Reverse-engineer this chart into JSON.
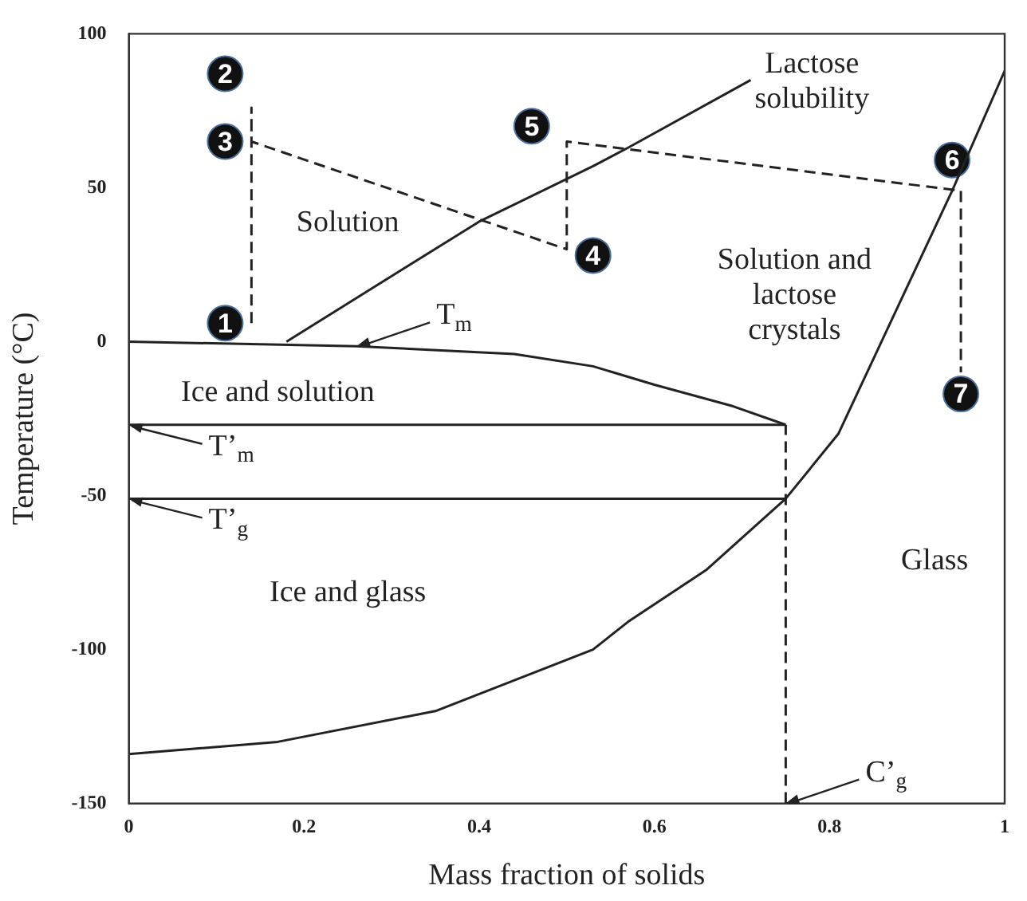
{
  "chart_data": {
    "type": "line",
    "xlabel": "Mass fraction of solids",
    "ylabel": "Temperature (°C)",
    "xlim": [
      0,
      1
    ],
    "xticks": [
      0,
      0.2,
      0.4,
      0.6,
      0.8,
      1
    ],
    "ylim": [
      -150,
      100
    ],
    "yticks": [
      -150,
      -100,
      -50,
      0,
      50,
      100
    ],
    "grid": false,
    "series": [
      {
        "color": "#222222",
        "line_style": "solid",
        "marker": "none",
        "x": [
          0,
          0.26,
          0.44,
          0.53,
          0.6,
          0.69,
          0.75
        ],
        "values": [
          0,
          -1.5,
          -4,
          -8,
          -14,
          -21,
          -27
        ]
      },
      {
        "color": "#222222",
        "line_style": "solid",
        "marker": "none",
        "x": [
          0.18,
          0.4,
          0.53,
          0.57,
          0.71
        ],
        "values": [
          0,
          39,
          57,
          63,
          85
        ]
      },
      {
        "color": "#222222",
        "line_style": "solid",
        "marker": "none",
        "x": [
          0,
          0.17,
          0.35,
          0.53,
          0.57,
          0.66,
          0.75,
          0.81,
          0.94,
          1
        ],
        "values": [
          -134,
          -130,
          -120,
          -100,
          -91,
          -74,
          -51,
          -30,
          49,
          88
        ]
      },
      {
        "color": "#222222",
        "line_style": "solid",
        "marker": "none",
        "x": [
          0,
          0.75
        ],
        "values": [
          -27,
          -27
        ]
      },
      {
        "color": "#222222",
        "line_style": "solid",
        "marker": "none",
        "x": [
          0,
          0.75
        ],
        "values": [
          -51,
          -51
        ]
      },
      {
        "color": "#222222",
        "line_style": "dashed",
        "marker": "none",
        "x": [
          0.75,
          0.75
        ],
        "values": [
          -150,
          -27
        ]
      },
      {
        "color": "#222222",
        "line_style": "dashed",
        "marker": "none",
        "x": [
          0.14,
          0.14,
          0.14,
          0.5,
          0.5,
          0.95,
          0.95
        ],
        "values": [
          6,
          76,
          65,
          30,
          65,
          49,
          -10
        ]
      },
      {
        "type": "scatter",
        "color": "#111111",
        "marker": "circle",
        "x": [
          0.11,
          0.11,
          0.11,
          0.53,
          0.46,
          0.94,
          0.95
        ],
        "values": [
          6,
          87,
          65,
          28,
          70,
          59,
          -17
        ]
      }
    ],
    "annotations": [
      "Solution",
      "Lactose\nsolubility",
      "Solution and\nlactose\ncrystals",
      "Ice and solution",
      "Ice and glass",
      "Glass",
      {
        "text": "T$_{m}$",
        "x": 0.26,
        "y": -1.5
      },
      {
        "text": "T’$_{m}$",
        "x": 0,
        "y": -27
      },
      {
        "text": "T’$_{g}$",
        "x": 0,
        "y": -51
      },
      {
        "text": "C’$_{g}$",
        "x": 0.75,
        "y": -150
      },
      {
        "text": "1",
        "x": 0.11,
        "y": 6
      },
      {
        "text": "2",
        "x": 0.11,
        "y": 87
      },
      {
        "text": "3",
        "x": 0.11,
        "y": 65
      },
      {
        "text": "4",
        "x": 0.53,
        "y": 28
      },
      {
        "text": "5",
        "x": 0.46,
        "y": 70
      },
      {
        "text": "6",
        "x": 0.94,
        "y": 59
      },
      {
        "text": "7",
        "x": 0.95,
        "y": -17
      }
    ]
  }
}
